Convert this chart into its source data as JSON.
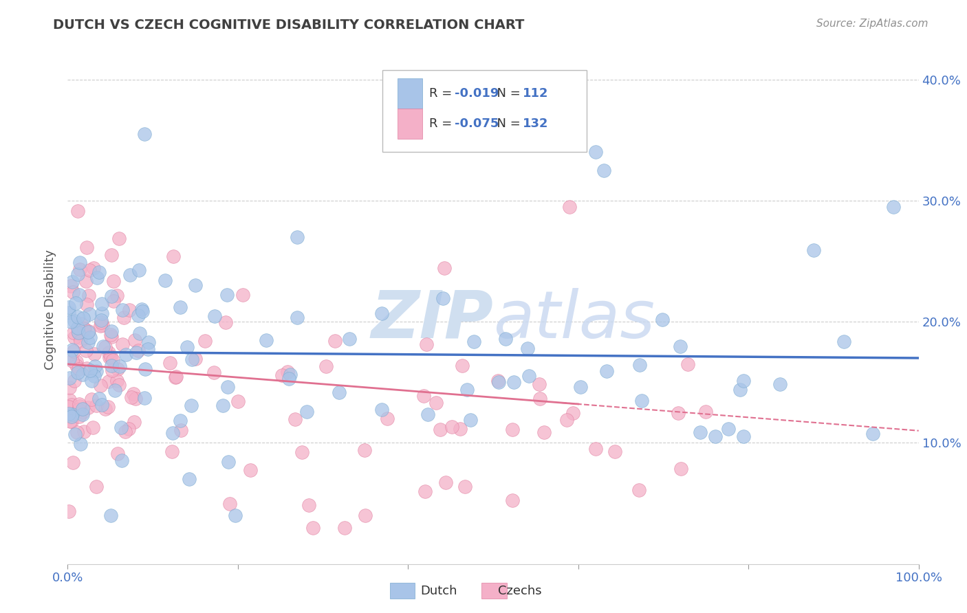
{
  "title": "DUTCH VS CZECH COGNITIVE DISABILITY CORRELATION CHART",
  "source": "Source: ZipAtlas.com",
  "ylabel": "Cognitive Disability",
  "xlim": [
    0,
    1.0
  ],
  "ylim": [
    0,
    0.42
  ],
  "xticks": [
    0.0,
    0.2,
    0.4,
    0.6,
    0.8,
    1.0
  ],
  "xticklabels": [
    "0.0%",
    "",
    "",
    "",
    "",
    "100.0%"
  ],
  "yticks": [
    0.1,
    0.2,
    0.3,
    0.4
  ],
  "yticklabels": [
    "10.0%",
    "20.0%",
    "30.0%",
    "40.0%"
  ],
  "dutch_color": "#a8c4e8",
  "dutch_edge_color": "#7aaad0",
  "czech_color": "#f4b0c8",
  "czech_edge_color": "#e080a0",
  "dutch_R": -0.019,
  "dutch_N": 112,
  "czech_R": -0.075,
  "czech_N": 132,
  "dutch_line_color": "#4472c4",
  "czech_line_color": "#e07090",
  "watermark_color": "#d0dff0",
  "background_color": "#ffffff",
  "grid_color": "#cccccc",
  "title_color": "#404040",
  "source_color": "#909090",
  "tick_color": "#4472c4",
  "legend_R_color": "#4472c4",
  "legend_text_color": "#333333"
}
